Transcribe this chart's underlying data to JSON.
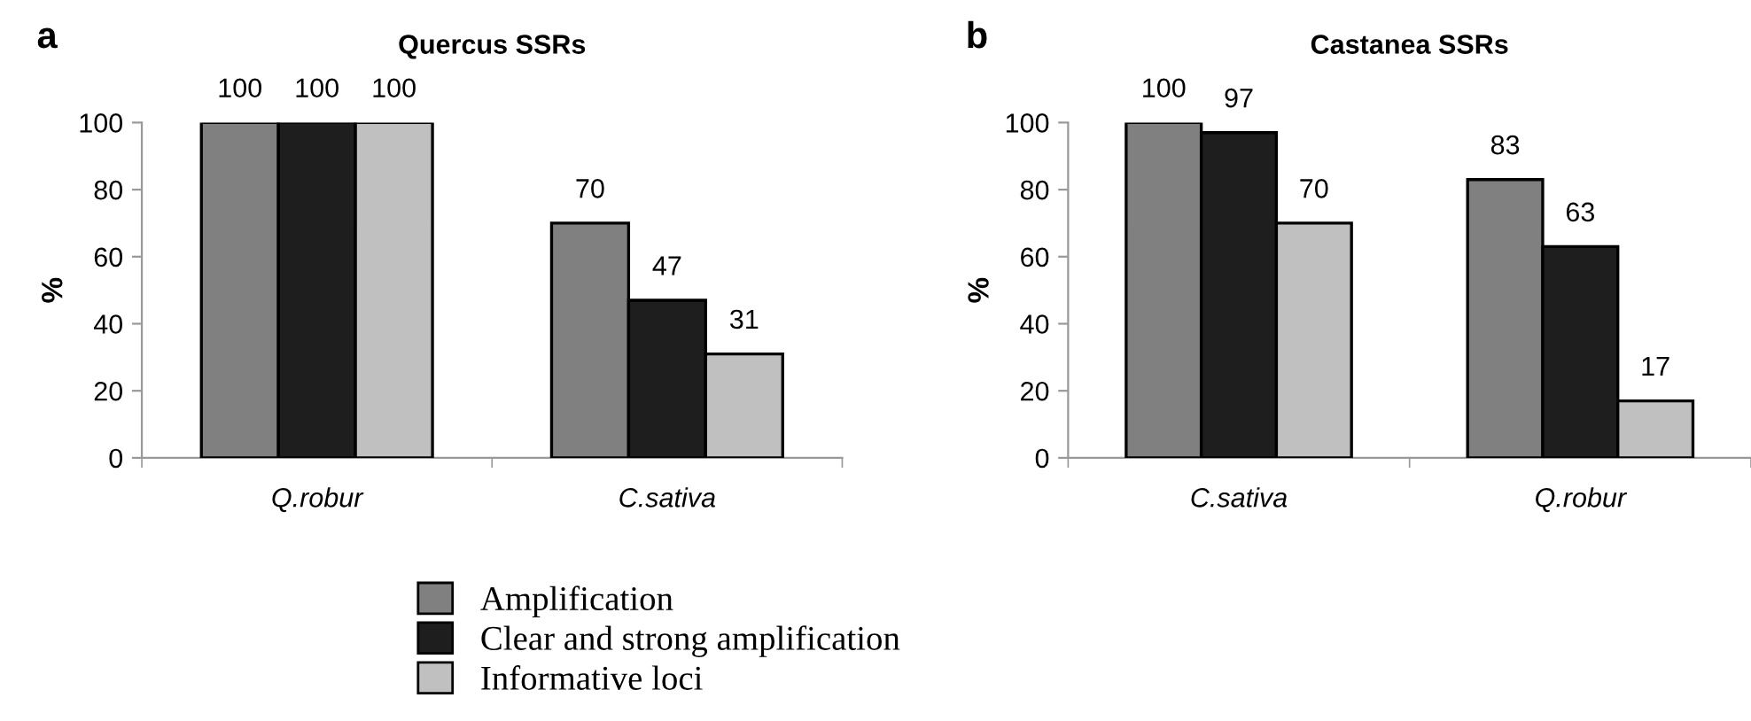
{
  "chart_data": [
    {
      "type": "bar",
      "title": "Quercus SSRs",
      "ylabel": "%",
      "annotations": [
        "a"
      ],
      "categories": [
        "Q.robur",
        "C.sativa"
      ],
      "series": [
        {
          "name": "Amplification",
          "color": "#808080",
          "values": [
            100,
            70
          ]
        },
        {
          "name": "Clear and strong amplification",
          "color": "#1e1e1e",
          "values": [
            100,
            47
          ]
        },
        {
          "name": "Informative loci",
          "color": "#c0c0c0",
          "values": [
            100,
            31
          ]
        }
      ],
      "ylim": [
        0,
        100
      ],
      "yticks": [
        0,
        20,
        40,
        60,
        80,
        100
      ],
      "grid": false,
      "legend": "bottom",
      "data_labels": true
    },
    {
      "type": "bar",
      "title": "Castanea SSRs",
      "ylabel": "%",
      "annotations": [
        "b"
      ],
      "categories": [
        "C.sativa",
        "Q.robur"
      ],
      "series": [
        {
          "color": "#808080",
          "values": [
            100,
            83
          ]
        },
        {
          "color": "#1e1e1e",
          "values": [
            97,
            63
          ]
        },
        {
          "color": "#c0c0c0",
          "values": [
            70,
            17
          ]
        }
      ],
      "ylim": [
        0,
        100
      ],
      "yticks": [
        0,
        20,
        40,
        60,
        80,
        100
      ],
      "grid": false,
      "data_labels": true
    }
  ]
}
